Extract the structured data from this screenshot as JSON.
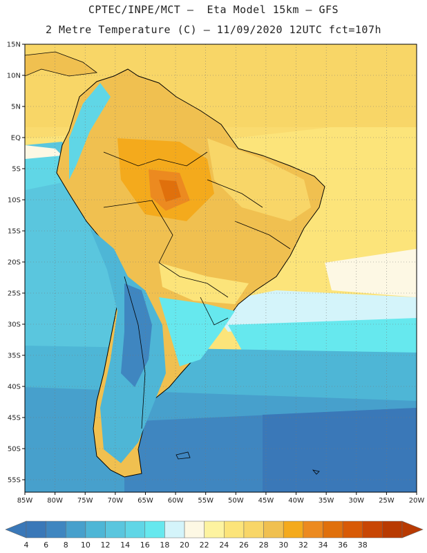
{
  "header": {
    "line1": "CPTEC/INPE/MCT –  Eta Model 15km – GFS",
    "line2": "2 Metre Temperature (C) – 11/09/2020 12UTC fct=107h"
  },
  "map": {
    "lat_labels": [
      "15N",
      "10N",
      "5N",
      "EQ",
      "5S",
      "10S",
      "15S",
      "20S",
      "25S",
      "30S",
      "35S",
      "40S",
      "45S",
      "50S",
      "55S"
    ],
    "lon_labels": [
      "85W",
      "80W",
      "75W",
      "70W",
      "65W",
      "60W",
      "55W",
      "50W",
      "45W",
      "40W",
      "35W",
      "30W",
      "25W",
      "20W"
    ],
    "lat_range": [
      15,
      -57
    ],
    "lon_range": [
      -85,
      -20
    ],
    "gridlines": "dotted"
  },
  "colorbar": {
    "labels": [
      "4",
      "6",
      "8",
      "10",
      "12",
      "14",
      "16",
      "18",
      "20",
      "22",
      "24",
      "26",
      "28",
      "30",
      "32",
      "34",
      "36",
      "38"
    ],
    "colors": [
      "#3a78b8",
      "#3f86c0",
      "#47a0cc",
      "#4eb6d6",
      "#5ac6de",
      "#60d6e6",
      "#66e8ee",
      "#d4f4fa",
      "#fdf8e4",
      "#fdf3a0",
      "#fce47a",
      "#f8d668",
      "#f0c050",
      "#f4aa1c",
      "#ec8a20",
      "#e0700c",
      "#d85a06",
      "#c84604",
      "#b83a02"
    ]
  }
}
